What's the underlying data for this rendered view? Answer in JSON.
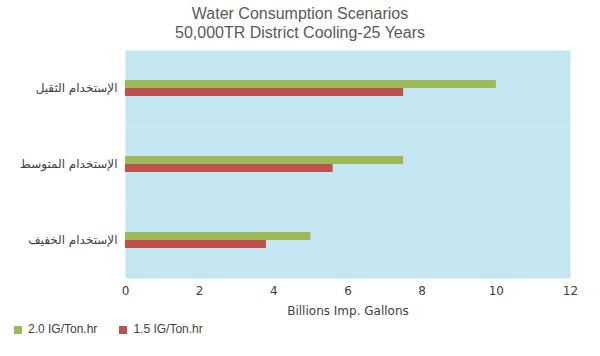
{
  "chart_data": {
    "type": "bar",
    "orientation": "horizontal",
    "title": "Water Consumption Scenarios",
    "subtitle": "50,000TR District Cooling-25 Years",
    "x_label": "Billions Imp. Gallons",
    "categories": [
      "الإستخدام الثقيل",
      "الإستخدام المتوسط",
      "الإستخدام الخفيف"
    ],
    "series": [
      {
        "name": "2.0 IG/Ton.hr",
        "color": "#9bbb59",
        "values": [
          10,
          7.5,
          5
        ]
      },
      {
        "name": "1.5 IG/Ton.hr",
        "color": "#c0504d",
        "values": [
          7.5,
          5.6,
          3.8
        ]
      }
    ],
    "xlim": [
      0,
      12
    ],
    "xticks": [
      0,
      2,
      4,
      6,
      8,
      10,
      12
    ],
    "grid": false,
    "legend": "bottom"
  }
}
